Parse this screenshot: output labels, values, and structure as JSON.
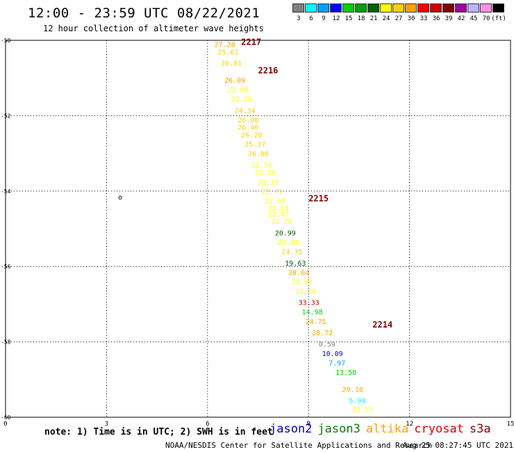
{
  "header": {
    "title": "12:00 - 23:59 UTC 08/22/2021",
    "subtitle": "12 hour collection of altimeter wave heights"
  },
  "scale": {
    "colors": [
      "#808080",
      "#00ffff",
      "#00a0ff",
      "#0000ff",
      "#00d000",
      "#00a000",
      "#006000",
      "#ffff00",
      "#ffd000",
      "#ffa000",
      "#ff0000",
      "#d00000",
      "#800000",
      "#a000a0",
      "#c0b0ff",
      "#ff90e0",
      "#000000"
    ],
    "labels": [
      "3",
      "6",
      "9",
      "12",
      "15",
      "18",
      "21",
      "24",
      "27",
      "30",
      "33",
      "36",
      "39",
      "42",
      "45",
      "70",
      "(ft)"
    ]
  },
  "map": {
    "x_ticks": [
      "0",
      "3",
      "6",
      "9",
      "12",
      "15"
    ],
    "y_ticks": [
      "-50",
      "-52",
      "-54",
      "-56",
      "-58",
      "-60"
    ],
    "marker": "o"
  },
  "chart_data": {
    "type": "scatter",
    "x_range": [
      0,
      15
    ],
    "y_range": [
      -50,
      -60
    ],
    "grid": true,
    "pass_labels": [
      {
        "text": "2217",
        "lon": 7.0,
        "lat": -50.05,
        "color": "#800000"
      },
      {
        "text": "2216",
        "lon": 7.5,
        "lat": -50.8,
        "color": "#800000"
      },
      {
        "text": "2215",
        "lon": 9.0,
        "lat": -54.2,
        "color": "#800000"
      },
      {
        "text": "2214",
        "lon": 10.9,
        "lat": -57.55,
        "color": "#800000"
      }
    ],
    "points": [
      {
        "lon": 6.2,
        "lat": -50.1,
        "value": "27.28",
        "color": "#ffa000"
      },
      {
        "lon": 6.3,
        "lat": -50.3,
        "value": "25.61",
        "color": "#ffd000"
      },
      {
        "lon": 6.4,
        "lat": -50.6,
        "value": "26.81",
        "color": "#ffd000"
      },
      {
        "lon": 6.5,
        "lat": -51.05,
        "value": "26.09",
        "color": "#ffa000"
      },
      {
        "lon": 6.6,
        "lat": -51.3,
        "value": "22.88",
        "color": "#ffff00"
      },
      {
        "lon": 6.7,
        "lat": -51.55,
        "value": "23.28",
        "color": "#ffff00"
      },
      {
        "lon": 6.8,
        "lat": -51.85,
        "value": "24.34",
        "color": "#ffd000"
      },
      {
        "lon": 6.9,
        "lat": -52.1,
        "value": "26.00",
        "color": "#ffd000"
      },
      {
        "lon": 6.9,
        "lat": -52.3,
        "value": "26.46",
        "color": "#ffd000"
      },
      {
        "lon": 7.0,
        "lat": -52.5,
        "value": "26.20",
        "color": "#ffd000"
      },
      {
        "lon": 7.1,
        "lat": -52.75,
        "value": "25.37",
        "color": "#ffd000"
      },
      {
        "lon": 7.2,
        "lat": -53.0,
        "value": "26.88",
        "color": "#ffd000"
      },
      {
        "lon": 7.3,
        "lat": -53.3,
        "value": "21.74",
        "color": "#ffff00"
      },
      {
        "lon": 7.4,
        "lat": -53.5,
        "value": "23.38",
        "color": "#ffff00"
      },
      {
        "lon": 7.5,
        "lat": -53.75,
        "value": "23.37",
        "color": "#ffff00"
      },
      {
        "lon": 7.6,
        "lat": -54.0,
        "value": "22.71",
        "color": "#ffff00"
      },
      {
        "lon": 7.7,
        "lat": -54.25,
        "value": "22.92",
        "color": "#ffff00"
      },
      {
        "lon": 7.8,
        "lat": -54.45,
        "value": "23.61",
        "color": "#ffff00"
      },
      {
        "lon": 7.8,
        "lat": -54.6,
        "value": "22.07",
        "color": "#ffff00"
      },
      {
        "lon": 7.9,
        "lat": -54.8,
        "value": "21.26",
        "color": "#ffff00"
      },
      {
        "lon": 8.0,
        "lat": -55.1,
        "value": "20.99",
        "color": "#006000"
      },
      {
        "lon": 8.1,
        "lat": -55.35,
        "value": "22.98",
        "color": "#ffff00"
      },
      {
        "lon": 8.2,
        "lat": -55.6,
        "value": "24.35",
        "color": "#ffd000"
      },
      {
        "lon": 8.3,
        "lat": -55.9,
        "value": "19.63",
        "color": "#006000"
      },
      {
        "lon": 8.4,
        "lat": -56.15,
        "value": "28.64",
        "color": "#ffa000"
      },
      {
        "lon": 8.5,
        "lat": -56.4,
        "value": "23.97",
        "color": "#ffff00"
      },
      {
        "lon": 8.6,
        "lat": -56.65,
        "value": "23.74",
        "color": "#ffff00"
      },
      {
        "lon": 8.7,
        "lat": -56.95,
        "value": "33.33",
        "color": "#d00000"
      },
      {
        "lon": 8.8,
        "lat": -57.2,
        "value": "14.98",
        "color": "#00d000"
      },
      {
        "lon": 8.9,
        "lat": -57.45,
        "value": "24.75",
        "color": "#ffa000"
      },
      {
        "lon": 9.1,
        "lat": -57.75,
        "value": "28.72",
        "color": "#ffa000"
      },
      {
        "lon": 9.3,
        "lat": -58.05,
        "value": "0.59",
        "color": "#808080"
      },
      {
        "lon": 9.4,
        "lat": -58.3,
        "value": "10.09",
        "color": "#0000ff"
      },
      {
        "lon": 9.6,
        "lat": -58.55,
        "value": "7.97",
        "color": "#00a0ff"
      },
      {
        "lon": 9.8,
        "lat": -58.8,
        "value": "13.58",
        "color": "#00d000"
      },
      {
        "lon": 10.0,
        "lat": -59.25,
        "value": "29.18",
        "color": "#ffa000"
      },
      {
        "lon": 10.2,
        "lat": -59.55,
        "value": "5.94",
        "color": "#00ffff"
      },
      {
        "lon": 10.3,
        "lat": -59.8,
        "value": "22.77",
        "color": "#ffff00"
      }
    ]
  },
  "footer": {
    "note": "note: 1) Time is in UTC; 2) SWH is in feet",
    "satellites": [
      {
        "name": "jason2",
        "color": "#0000c0"
      },
      {
        "name": "jason3",
        "color": "#008000"
      },
      {
        "name": "altika",
        "color": "#ffa000"
      },
      {
        "name": "cryosat",
        "color": "#e00000"
      },
      {
        "name": "s3a",
        "color": "#800000"
      }
    ],
    "credit": "NOAA/NESDIS Center for Satellite Applications and Research",
    "timestamp": "Aug 25 08:27:45 UTC 2021"
  }
}
